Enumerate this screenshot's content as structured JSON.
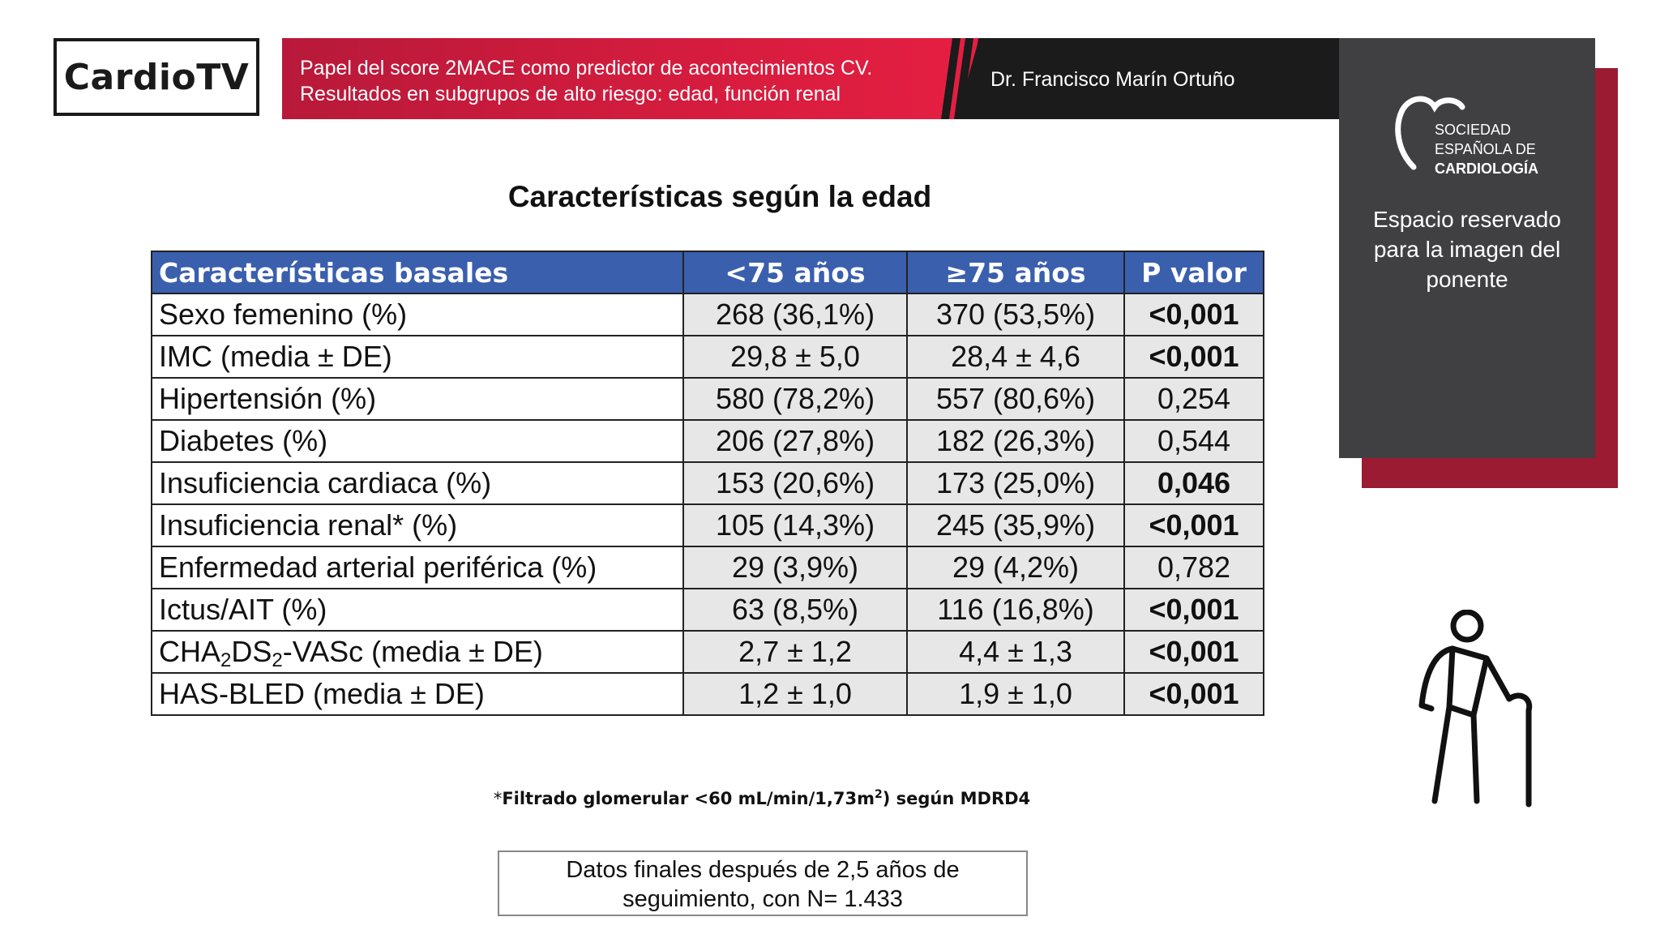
{
  "header": {
    "logo_text": "CardioTV",
    "title_line1": "Papel del score 2MACE como predictor de acontecimientos CV.",
    "title_line2": "Resultados en subgrupos de alto riesgo: edad, función renal",
    "speaker": "Dr. Francisco Marín Ortuño"
  },
  "panel": {
    "society_line1": "SOCIEDAD",
    "society_line2": "ESPAÑOLA DE",
    "society_line3": "CARDIOLOGÍA",
    "reserved_line1": "Espacio reservado",
    "reserved_line2": "para la imagen del",
    "reserved_line3": "ponente"
  },
  "slide": {
    "title": "Características según la edad",
    "table": {
      "headers": [
        "Características basales",
        "<75 años",
        "≥75 años",
        "P valor"
      ],
      "rows": [
        {
          "label": "Sexo femenino (%)",
          "a": "268 (36,1%)",
          "b": "370 (53,5%)",
          "p": "<0,001",
          "bold": true
        },
        {
          "label": "IMC (media ± DE)",
          "a": "29,8 ± 5,0",
          "b": "28,4 ± 4,6",
          "p": "<0,001",
          "bold": true
        },
        {
          "label": "Hipertensión (%)",
          "a": "580 (78,2%)",
          "b": "557 (80,6%)",
          "p": "0,254",
          "bold": false
        },
        {
          "label": "Diabetes (%)",
          "a": "206 (27,8%)",
          "b": "182 (26,3%)",
          "p": "0,544",
          "bold": false
        },
        {
          "label": "Insuficiencia cardiaca (%)",
          "a": "153 (20,6%)",
          "b": "173 (25,0%)",
          "p": "0,046",
          "bold": true
        },
        {
          "label": "Insuficiencia renal* (%)",
          "a": "105 (14,3%)",
          "b": "245 (35,9%)",
          "p": "<0,001",
          "bold": true
        },
        {
          "label": "Enfermedad arterial periférica (%)",
          "a": "29 (3,9%)",
          "b": "29 (4,2%)",
          "p": "0,782",
          "bold": false
        },
        {
          "label": "Ictus/AIT (%)",
          "a": "63 (8,5%)",
          "b": "116 (16,8%)",
          "p": "<0,001",
          "bold": true
        },
        {
          "label_parts": [
            "CHA",
            "2",
            "DS",
            "2",
            "-VASc (media ± DE)"
          ],
          "a": "2,7 ± 1,2",
          "b": "4,4 ± 1,3",
          "p": "<0,001",
          "bold": true
        },
        {
          "label": "HAS-BLED (media ± DE)",
          "a": "1,2 ± 1,0",
          "b": "1,9 ± 1,0",
          "p": "<0,001",
          "bold": true
        }
      ]
    },
    "footnote_asterisk": "*",
    "footnote_text": "Filtrado glomerular <60 mL/min/1,73m",
    "footnote_sup": "2",
    "footnote_tail": ") según MDRD4",
    "final_line1": "Datos finales después de 2,5 años de",
    "final_line2": "seguimiento, con N= 1.433"
  },
  "icons": {
    "elderly": "elderly-person-with-cane-icon",
    "society": "heart-outline-icon"
  }
}
